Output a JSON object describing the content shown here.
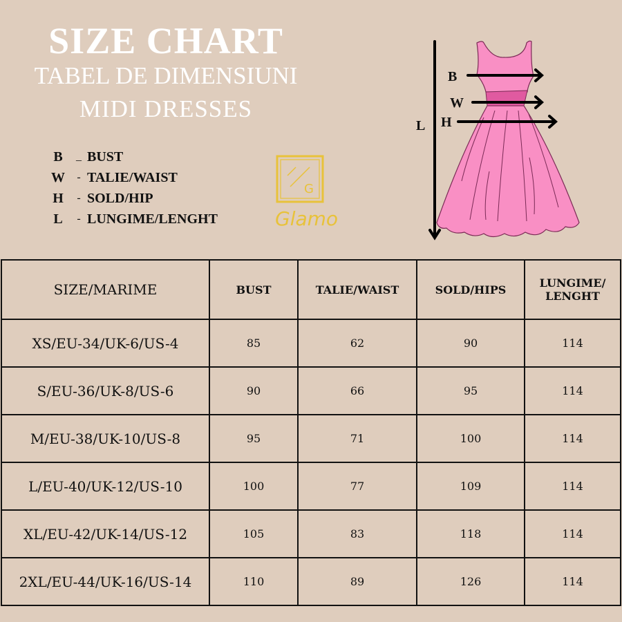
{
  "header": {
    "title": "SIZE CHART",
    "subtitle": "TABEL DE DIMENSIUNI",
    "category": "MIDI DRESSES"
  },
  "legend": [
    {
      "key": "B",
      "sep": "_",
      "label": "BUST"
    },
    {
      "key": "W",
      "sep": "-",
      "label": "TALIE/WAIST"
    },
    {
      "key": "H",
      "sep": "-",
      "label": "SOLD/HIP"
    },
    {
      "key": "L",
      "sep": "-",
      "label": "LUNGIME/LENGHT"
    }
  ],
  "logo": {
    "text": "Glamo",
    "color": "#e8c23a"
  },
  "diagram": {
    "labels": {
      "b": "B",
      "w": "W",
      "h": "H",
      "l": "L"
    },
    "dress_color": "#f98fc4",
    "waistband_color": "#e05aa0"
  },
  "table": {
    "headers": [
      "SIZE/MARIME",
      "BUST",
      "TALIE/WAIST",
      "SOLD/HIPS",
      "LUNGIME/ LENGHT"
    ],
    "rows": [
      [
        "XS/EU-34/UK-6/US-4",
        "85",
        "62",
        "90",
        "114"
      ],
      [
        "S/EU-36/UK-8/US-6",
        "90",
        "66",
        "95",
        "114"
      ],
      [
        "M/EU-38/UK-10/US-8",
        "95",
        "71",
        "100",
        "114"
      ],
      [
        "L/EU-40/UK-12/US-10",
        "100",
        "77",
        "109",
        "114"
      ],
      [
        "XL/EU-42/UK-14/US-12",
        "105",
        "83",
        "118",
        "114"
      ],
      [
        "2XL/EU-44/UK-16/US-14",
        "110",
        "89",
        "126",
        "114"
      ]
    ]
  }
}
